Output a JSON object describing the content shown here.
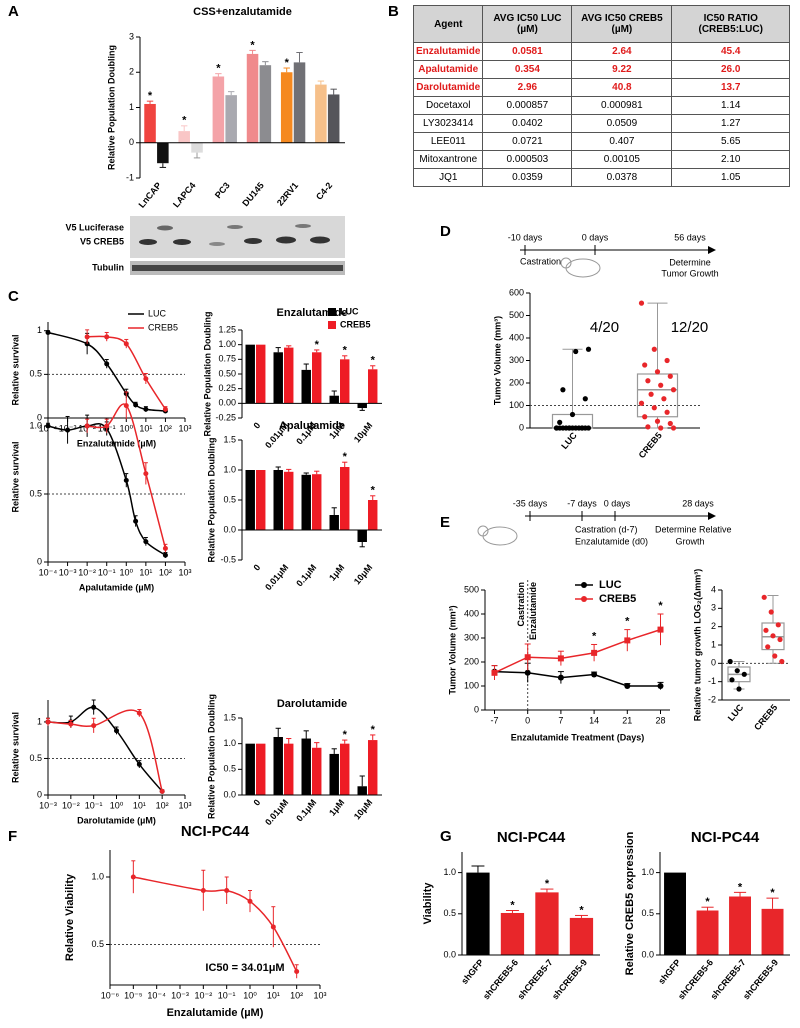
{
  "panels": [
    "A",
    "B",
    "C",
    "D",
    "E",
    "F",
    "G"
  ],
  "blot": {
    "labels": [
      "V5 Luciferase",
      "V5 CREB5",
      "Tubulin"
    ]
  },
  "table": {
    "header": [
      "Agent",
      "AVG IC50 LUC (µM)",
      "AVG IC50 CREB5 (µM)",
      "IC50 RATIO (CREB5:LUC)"
    ],
    "rows": [
      [
        "Enzalutamide",
        "0.0581",
        "2.64",
        "45.4"
      ],
      [
        "Apalutamide",
        "0.354",
        "9.22",
        "26.0"
      ],
      [
        "Darolutamide",
        "2.96",
        "40.8",
        "13.7"
      ],
      [
        "Docetaxol",
        "0.000857",
        "0.000981",
        "1.14"
      ],
      [
        "LY3023414",
        "0.0402",
        "0.0509",
        "1.27"
      ],
      [
        "LEE011",
        "0.0721",
        "0.407",
        "5.65"
      ],
      [
        "Mitoxantrone",
        "0.000503",
        "0.00105",
        "2.10"
      ],
      [
        "JQ1",
        "0.0359",
        "0.0378",
        "1.05"
      ]
    ]
  },
  "schematic_d": {
    "ticks": [
      "-10 days",
      "0 days",
      "56 days"
    ],
    "start": "Castration",
    "end": [
      "Determine",
      "Tumor Growth"
    ]
  },
  "schematic_e": {
    "ticks": [
      "-35 days",
      "-7 days",
      "0 days",
      "28 days"
    ],
    "middle": [
      "Castration (d-7)",
      "Enzalutamide (d0)"
    ],
    "end": [
      "Determine Relative",
      "Growth"
    ]
  },
  "chart_data": [
    {
      "type": "bar",
      "title": "CSS+enzalutamide",
      "ylabel": "Relative Population Doubling",
      "categories": [
        "LnCAP",
        "LAPC4",
        "PC3",
        "DU145",
        "22RV1",
        "C4-2"
      ],
      "ylim": [
        -1,
        3
      ],
      "yticks": [
        -1,
        0,
        1,
        2,
        3
      ],
      "series": [
        {
          "colors": [
            "#f0443f",
            "#f9c6c6",
            "#f4a3a8",
            "#f08a8c",
            "#f5891f",
            "#f6c08a"
          ],
          "values": [
            1.1,
            0.33,
            1.88,
            2.52,
            2.0,
            1.65
          ],
          "errors": [
            0.08,
            0.15,
            0.08,
            0.1,
            0.12,
            0.1
          ],
          "annotations": [
            "*",
            "*",
            "*",
            "*",
            "*",
            null
          ]
        },
        {
          "colors": [
            "#111111",
            "#dddddd",
            "#a9a9b0",
            "#8c8c90",
            "#707075",
            "#55555a"
          ],
          "values": [
            -0.58,
            -0.28,
            1.35,
            2.2,
            2.28,
            1.37
          ],
          "errors": [
            0.12,
            0.15,
            0.1,
            0.1,
            0.28,
            0.15
          ]
        }
      ]
    },
    {
      "type": "curve",
      "ylabel": "Relative survival",
      "xlabel": "Enzalutamide (µM)",
      "xscale": "log",
      "xlim": [
        0.0001,
        1000
      ],
      "xticks": [
        {
          "value": 0.0001,
          "label": "10⁻⁴"
        },
        {
          "value": 0.001,
          "label": "10⁻³"
        },
        {
          "value": 0.01,
          "label": "10⁻²"
        },
        {
          "value": 0.1,
          "label": "10⁻¹"
        },
        {
          "value": 1,
          "label": "10⁰"
        },
        {
          "value": 10,
          "label": "10¹"
        },
        {
          "value": 100,
          "label": "10²"
        },
        {
          "value": 1000,
          "label": "10³"
        }
      ],
      "ylim": [
        0,
        1.1
      ],
      "yticks": [
        0,
        0.5,
        1
      ],
      "hline": 0.5,
      "legend": true,
      "series": [
        {
          "name": "LUC",
          "color": "#000000",
          "x": [
            0.0001,
            0.01,
            0.1,
            1,
            3,
            10,
            100
          ],
          "values": [
            0.98,
            0.85,
            0.62,
            0.28,
            0.15,
            0.1,
            0.08
          ],
          "errors": [
            0.02,
            0.12,
            0.05,
            0.05,
            0.03,
            0.03,
            0.02
          ]
        },
        {
          "name": "CREB5",
          "color": "#e8262a",
          "x": [
            0.01,
            0.1,
            1,
            10,
            100
          ],
          "values": [
            0.93,
            0.93,
            0.85,
            0.45,
            0.1
          ],
          "errors": [
            0.08,
            0.05,
            0.05,
            0.06,
            0.03
          ]
        }
      ]
    },
    {
      "type": "bar",
      "title": "Enzalutamide",
      "ylabel": "Relative Population Doubling",
      "categories": [
        "0",
        "0.01μM",
        "0.1μM",
        "1μM",
        "10μM"
      ],
      "ylim": [
        -0.25,
        1.25
      ],
      "yticks": [
        -0.25,
        {
          "value": 0,
          "label": "0.00"
        },
        0.25,
        {
          "value": 0.5,
          "label": "0.50"
        },
        0.75,
        {
          "value": 1,
          "label": "1.00"
        },
        1.25
      ],
      "legend": true,
      "series": [
        {
          "name": "LUC",
          "color": "#000000",
          "values": [
            1,
            0.87,
            0.57,
            0.13,
            -0.08
          ],
          "errors": [
            null,
            0.08,
            0.1,
            0.08,
            0.04
          ]
        },
        {
          "name": "CREB5",
          "color": "#ee1c25",
          "values": [
            1,
            0.95,
            0.87,
            0.75,
            0.58
          ],
          "errors": [
            null,
            0.03,
            0.04,
            0.06,
            0.06
          ],
          "annotations": [
            null,
            null,
            "*",
            "*",
            "*"
          ]
        }
      ]
    },
    {
      "type": "curve",
      "ylabel": "Relative survival",
      "xlabel": "Apalutamide (µM)",
      "xscale": "log",
      "xlim": [
        0.0001,
        1000
      ],
      "xticks": [
        {
          "value": 0.0001,
          "label": "10⁻⁴"
        },
        {
          "value": 0.001,
          "label": "10⁻³"
        },
        {
          "value": 0.01,
          "label": "10⁻²"
        },
        {
          "value": 0.1,
          "label": "10⁻¹"
        },
        {
          "value": 1,
          "label": "10⁰"
        },
        {
          "value": 10,
          "label": "10¹"
        },
        {
          "value": 100,
          "label": "10²"
        },
        {
          "value": 1000,
          "label": "10³"
        }
      ],
      "ylim": [
        0,
        1.25
      ],
      "yticks": [
        0,
        0.5,
        {
          "value": 1,
          "label": "1.0"
        }
      ],
      "hline": 0.5,
      "series": [
        {
          "color": "#000000",
          "x": [
            0.0001,
            0.001,
            0.01,
            0.1,
            1,
            3,
            10,
            100
          ],
          "values": [
            1.0,
            0.97,
            1.0,
            0.98,
            0.6,
            0.3,
            0.15,
            0.05
          ],
          "errors": [
            0.02,
            0.1,
            0.08,
            0.05,
            0.05,
            0.04,
            0.03,
            0.02
          ]
        },
        {
          "color": "#e8262a",
          "x": [
            0.01,
            0.1,
            1,
            10,
            100
          ],
          "values": [
            1.0,
            1.0,
            1.15,
            0.65,
            0.1
          ],
          "errors": [
            0.05,
            0.05,
            0.1,
            0.08,
            0.03
          ]
        }
      ]
    },
    {
      "type": "bar",
      "title": "Apalutamide",
      "ylabel": "Relative Population Doubling",
      "categories": [
        "0",
        "0.01μM",
        "0.1μM",
        "1μM",
        "10μM"
      ],
      "ylim": [
        -0.5,
        1.5
      ],
      "yticks": [
        -0.5,
        {
          "value": 0,
          "label": "0.0"
        },
        0.5,
        {
          "value": 1,
          "label": "1.0"
        },
        1.5
      ],
      "series": [
        {
          "color": "#000000",
          "values": [
            1,
            1.0,
            0.92,
            0.25,
            -0.2
          ],
          "errors": [
            null,
            0.05,
            0.03,
            0.12,
            0.08
          ]
        },
        {
          "color": "#ee1c25",
          "values": [
            1,
            0.97,
            0.93,
            1.05,
            0.5
          ],
          "errors": [
            null,
            0.04,
            0.05,
            0.08,
            0.07
          ],
          "annotations": [
            null,
            null,
            null,
            "*",
            "*"
          ]
        }
      ]
    },
    {
      "type": "curve",
      "ylabel": "Relative survival",
      "xlabel": "Darolutamide (µM)",
      "xscale": "log",
      "xlim": [
        0.001,
        1000
      ],
      "xticks": [
        {
          "value": 0.001,
          "label": "10⁻³"
        },
        {
          "value": 0.01,
          "label": "10⁻²"
        },
        {
          "value": 0.1,
          "label": "10⁻¹"
        },
        {
          "value": 1,
          "label": "10⁰"
        },
        {
          "value": 10,
          "label": "10¹"
        },
        {
          "value": 100,
          "label": "10²"
        },
        {
          "value": 1000,
          "label": "10³"
        }
      ],
      "ylim": [
        0,
        1.3
      ],
      "yticks": [
        0,
        0.5,
        1
      ],
      "hline": 0.5,
      "series": [
        {
          "color": "#000000",
          "x": [
            0.001,
            0.01,
            0.1,
            1,
            10,
            100
          ],
          "values": [
            1.0,
            1.0,
            1.2,
            0.88,
            0.42,
            0.05
          ],
          "errors": [
            0.05,
            0.08,
            0.1,
            0.05,
            0.05,
            0.02
          ]
        },
        {
          "color": "#e8262a",
          "x": [
            0.001,
            0.01,
            0.1,
            10,
            100
          ],
          "values": [
            1.0,
            0.97,
            0.95,
            1.12,
            0.05
          ],
          "errors": [
            0.05,
            0.05,
            0.1,
            0.05,
            0.02
          ]
        }
      ]
    },
    {
      "type": "bar",
      "title": "Darolutamide",
      "ylabel": "Relative Population Doubling",
      "categories": [
        "0",
        "0.01μM",
        "0.1μM",
        "1μM",
        "10μM"
      ],
      "ylim": [
        0,
        1.5
      ],
      "yticks": [
        {
          "value": 0,
          "label": "0.0"
        },
        0.5,
        {
          "value": 1,
          "label": "1.0"
        },
        1.5
      ],
      "series": [
        {
          "color": "#000000",
          "values": [
            1,
            1.13,
            1.1,
            0.8,
            0.17
          ],
          "errors": [
            null,
            0.17,
            0.15,
            0.1,
            0.2
          ]
        },
        {
          "color": "#ee1c25",
          "values": [
            1,
            1.0,
            0.92,
            1.0,
            1.07
          ],
          "errors": [
            null,
            0.1,
            0.1,
            0.07,
            0.1
          ],
          "annotations": [
            null,
            null,
            null,
            "*",
            "*"
          ]
        }
      ]
    },
    {
      "type": "box",
      "ylabel": "Tumor Volume (mm³)",
      "categories": [
        "LUC",
        "CREB5"
      ],
      "ylim": [
        0,
        600
      ],
      "yticks": [
        0,
        100,
        200,
        300,
        400,
        500,
        600
      ],
      "hline": 100,
      "colors": [
        "#000000",
        "#e8262a"
      ],
      "annotations": [
        "4/20",
        "12/20"
      ],
      "boxes": [
        {
          "min": 0,
          "q1": 0,
          "median": 0,
          "q3": 60,
          "max": 350
        },
        {
          "min": 0,
          "q1": 50,
          "median": 170,
          "q3": 240,
          "max": 555
        }
      ],
      "points": [
        [
          0,
          0,
          0,
          0,
          0,
          0,
          0,
          0,
          0,
          0,
          0,
          0,
          0,
          0,
          25,
          60,
          130,
          170,
          340,
          350
        ],
        [
          555,
          350,
          300,
          280,
          250,
          230,
          210,
          190,
          170,
          150,
          130,
          110,
          90,
          70,
          50,
          30,
          20,
          5,
          0,
          0
        ]
      ]
    },
    {
      "type": "line",
      "ylabel": "Tumor Volume (mm³)",
      "xlabel": "Enzalutamide Treatment (Days)",
      "xlim": [
        -9,
        30
      ],
      "xticks": [
        -7,
        0,
        7,
        14,
        21,
        28
      ],
      "ylim": [
        0,
        500
      ],
      "yticks": [
        0,
        100,
        200,
        300,
        400,
        500
      ],
      "vline": 0,
      "vline_labels": [
        "Castration",
        "Enzalutamide"
      ],
      "legend": true,
      "series": [
        {
          "name": "LUC",
          "color": "#000000",
          "marker": "circle",
          "x": [
            -7,
            0,
            7,
            14,
            21,
            28
          ],
          "values": [
            160,
            155,
            135,
            148,
            100,
            100
          ],
          "errors": [
            25,
            40,
            25,
            10,
            10,
            15
          ]
        },
        {
          "name": "CREB5",
          "color": "#e8262a",
          "marker": "square",
          "x": [
            -7,
            0,
            7,
            14,
            21,
            28
          ],
          "values": [
            155,
            220,
            215,
            238,
            290,
            335
          ],
          "errors": [
            30,
            55,
            30,
            35,
            45,
            65
          ],
          "annotations": [
            null,
            null,
            null,
            "*",
            "*",
            "*"
          ]
        }
      ]
    },
    {
      "type": "box",
      "ylabel": "Relative tumor growth LOG₂(Δmm³)",
      "categories": [
        "LUC",
        "CREB5"
      ],
      "ylim": [
        -2,
        4
      ],
      "yticks": [
        -2,
        -1,
        0,
        1,
        2,
        3,
        4
      ],
      "hline": 0,
      "colors": [
        "#000000",
        "#e8262a"
      ],
      "boxes": [
        {
          "min": -1.4,
          "q1": -1.0,
          "median": -0.6,
          "q3": -0.2,
          "max": 0.1
        },
        {
          "min": 0,
          "q1": 0.75,
          "median": 1.45,
          "q3": 2.2,
          "max": 3.7
        }
      ],
      "points": [
        [
          0.1,
          -0.4,
          -0.6,
          -0.9,
          -1.4
        ],
        [
          3.6,
          2.8,
          2.1,
          1.8,
          1.5,
          1.3,
          0.9,
          0.4,
          0.1
        ]
      ]
    },
    {
      "type": "curve",
      "title": "NCI-PC44",
      "ylabel": "Relative Viability",
      "xlabel": "Enzalutamide (µM)",
      "xscale": "log",
      "xlim": [
        1e-06,
        1000
      ],
      "xticks": [
        {
          "value": 1e-06,
          "label": "10⁻⁶"
        },
        {
          "value": 1e-05,
          "label": "10⁻⁵"
        },
        {
          "value": 0.0001,
          "label": "10⁻⁴"
        },
        {
          "value": 0.001,
          "label": "10⁻³"
        },
        {
          "value": 0.01,
          "label": "10⁻²"
        },
        {
          "value": 0.1,
          "label": "10⁻¹"
        },
        {
          "value": 1,
          "label": "10⁰"
        },
        {
          "value": 10,
          "label": "10¹"
        },
        {
          "value": 100,
          "label": "10²"
        },
        {
          "value": 1000,
          "label": "10³"
        }
      ],
      "ylim": [
        0.2,
        1.2
      ],
      "yticks": [
        0.5,
        {
          "value": 1,
          "label": "1.0"
        }
      ],
      "hline": 0.5,
      "annotation": "IC50 = 34.01μM",
      "series": [
        {
          "color": "#e8262a",
          "x": [
            1e-05,
            0.01,
            0.1,
            1,
            10,
            100
          ],
          "values": [
            1.0,
            0.9,
            0.9,
            0.82,
            0.63,
            0.3
          ],
          "errors": [
            0.12,
            0.15,
            0.1,
            0.08,
            0.15,
            0.05
          ]
        }
      ]
    },
    {
      "type": "bar",
      "title": "NCI-PC44",
      "ylabel": "Viability",
      "categories": [
        "shGFP",
        "shCREB5-6",
        "shCREB5-7",
        "shCREB5-9"
      ],
      "ylim": [
        0,
        1.25
      ],
      "yticks": [
        {
          "value": 0,
          "label": "0.0"
        },
        0.5,
        {
          "value": 1,
          "label": "1.0"
        }
      ],
      "series": [
        {
          "colors": [
            "#000000",
            "#e8262a",
            "#e8262a",
            "#e8262a"
          ],
          "values": [
            1.0,
            0.51,
            0.76,
            0.45
          ],
          "errors": [
            0.08,
            0.03,
            0.04,
            0.03
          ],
          "annotations": [
            null,
            "*",
            "*",
            "*"
          ]
        }
      ]
    },
    {
      "type": "bar",
      "title": "NCI-PC44",
      "ylabel": "Relative CREB5 expression",
      "categories": [
        "shGFP",
        "shCREB5-6",
        "shCREB5-7",
        "shCREB5-9"
      ],
      "ylim": [
        0,
        1.25
      ],
      "yticks": [
        {
          "value": 0,
          "label": "0.0"
        },
        0.5,
        {
          "value": 1,
          "label": "1.0"
        }
      ],
      "series": [
        {
          "colors": [
            "#000000",
            "#e8262a",
            "#e8262a",
            "#e8262a"
          ],
          "values": [
            1.0,
            0.54,
            0.71,
            0.56
          ],
          "errors": [
            null,
            0.04,
            0.05,
            0.13
          ],
          "annotations": [
            null,
            "*",
            "*",
            "*"
          ]
        }
      ]
    }
  ]
}
